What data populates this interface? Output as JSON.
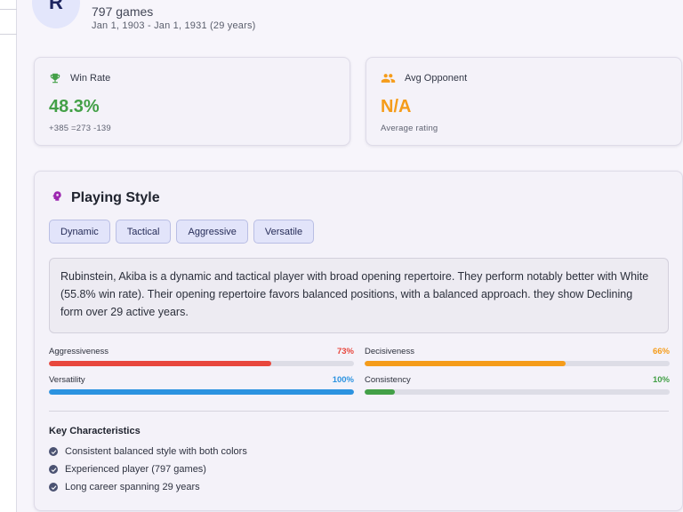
{
  "player": {
    "avatar_letter": "R",
    "games": "797 games",
    "date_range": "Jan 1, 1903 - Jan 1, 1931 (29 years)"
  },
  "win_rate": {
    "label": "Win Rate",
    "value": "48.3%",
    "record": "+385 =273 -139",
    "icon": "trophy-icon",
    "color": "#43a047"
  },
  "avg_opponent": {
    "label": "Avg Opponent",
    "value": "N/A",
    "sub": "Average rating",
    "icon": "people-icon",
    "color": "#f59c1a"
  },
  "playing_style": {
    "title": "Playing Style",
    "icon": "brain-icon",
    "tags": [
      "Dynamic",
      "Tactical",
      "Aggressive",
      "Versatile"
    ],
    "description": "Rubinstein, Akiba is a dynamic and tactical player with broad opening repertoire. They perform notably better with White (55.8% win rate). Their opening repertoire favors balanced positions, with a balanced approach. they show Declining form over 29 active years.",
    "metrics": [
      {
        "label": "Aggressiveness",
        "value": "73%",
        "fraction": 0.73,
        "color": "#e8473d"
      },
      {
        "label": "Decisiveness",
        "value": "66%",
        "fraction": 0.66,
        "color": "#f59c1a"
      },
      {
        "label": "Versatility",
        "value": "100%",
        "fraction": 1.0,
        "color": "#2c93e0"
      },
      {
        "label": "Consistency",
        "value": "10%",
        "fraction": 0.1,
        "color": "#43a047"
      }
    ],
    "key_characteristics_title": "Key Characteristics",
    "key_characteristics": [
      "Consistent balanced style with both colors",
      "Experienced player (797 games)",
      "Long career spanning 29 years"
    ]
  }
}
